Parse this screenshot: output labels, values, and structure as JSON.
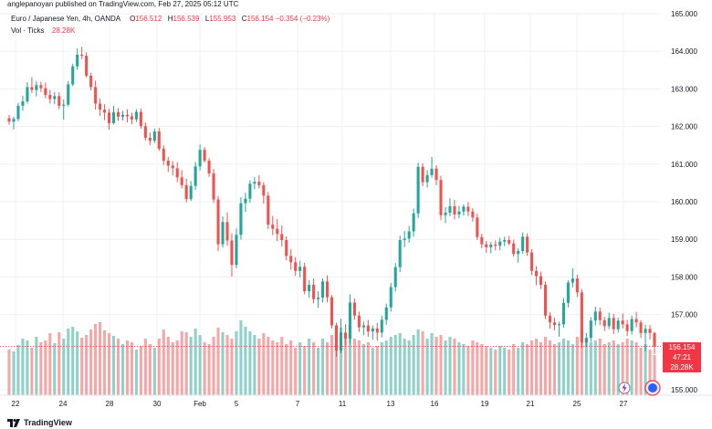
{
  "header": {
    "published": "anglepanoyan published on TradingView.com, Feb 27, 2025 05:12 UTC"
  },
  "legend": {
    "symbol": "Euro / Japanese Yen, 4h, OANDA",
    "o_key": "O",
    "o_val": "156.512",
    "h_key": "H",
    "h_val": "156.539",
    "l_key": "L",
    "l_val": "155.953",
    "c_key": "C",
    "c_val": "156.154",
    "change": "−0.354 (−0.23%)",
    "vol_label": "Vol · Ticks",
    "vol_val": "28.28K"
  },
  "price_label": {
    "price": "156.154",
    "countdown": "47:21",
    "volume": "28.28K"
  },
  "brand": {
    "name": "TradingView"
  },
  "colors": {
    "up": "#26a69a",
    "down": "#ef5350",
    "vol_up": "#8fd1c8",
    "vol_down": "#f5a6a6",
    "grid": "#eef0f3",
    "price_line": "#f23645"
  },
  "chart_data": {
    "type": "candlestick",
    "symbol": "EURJPY",
    "timeframe": "4h",
    "y_ticks": [
      "165.000",
      "164.000",
      "163.000",
      "162.000",
      "161.000",
      "160.000",
      "159.000",
      "158.000",
      "157.000",
      "156.000",
      "155.000"
    ],
    "ylim": [
      154.9,
      165.1
    ],
    "x_ticks": [
      "22",
      "24",
      "28",
      "30",
      "Feb",
      "5",
      "7",
      "11",
      "13",
      "16",
      "19",
      "21",
      "25",
      "27"
    ],
    "candles": [
      [
        162.22,
        162.31,
        162.05,
        162.13,
        0.5
      ],
      [
        162.13,
        162.26,
        161.92,
        162.2,
        0.48
      ],
      [
        162.2,
        162.63,
        162.14,
        162.55,
        0.55
      ],
      [
        162.55,
        162.82,
        162.42,
        162.67,
        0.62
      ],
      [
        162.67,
        163.18,
        162.61,
        163.05,
        0.6
      ],
      [
        163.05,
        163.31,
        162.89,
        162.97,
        0.52
      ],
      [
        162.97,
        163.21,
        162.8,
        163.1,
        0.64
      ],
      [
        163.1,
        163.19,
        162.92,
        163.02,
        0.58
      ],
      [
        163.02,
        163.17,
        162.75,
        162.84,
        0.6
      ],
      [
        162.84,
        162.97,
        162.61,
        162.73,
        0.68
      ],
      [
        162.73,
        162.92,
        162.59,
        162.81,
        0.57
      ],
      [
        162.81,
        162.91,
        162.46,
        162.55,
        0.69
      ],
      [
        162.55,
        162.72,
        162.18,
        162.58,
        0.62
      ],
      [
        162.58,
        163.21,
        162.53,
        163.12,
        0.73
      ],
      [
        163.12,
        163.67,
        163.07,
        163.6,
        0.75
      ],
      [
        163.6,
        164.08,
        163.51,
        163.91,
        0.7
      ],
      [
        163.91,
        164.12,
        163.79,
        163.88,
        0.63
      ],
      [
        163.88,
        163.97,
        163.3,
        163.35,
        0.66
      ],
      [
        163.35,
        163.43,
        162.96,
        163.05,
        0.72
      ],
      [
        163.05,
        163.22,
        162.45,
        162.61,
        0.78
      ],
      [
        162.61,
        162.74,
        162.28,
        162.45,
        0.8
      ],
      [
        162.45,
        162.59,
        162.17,
        162.37,
        0.71
      ],
      [
        162.37,
        162.47,
        161.92,
        162.09,
        0.68
      ],
      [
        162.09,
        162.55,
        162.05,
        162.38,
        0.65
      ],
      [
        162.38,
        162.49,
        162.15,
        162.26,
        0.62
      ],
      [
        162.26,
        162.42,
        162.16,
        162.31,
        0.56
      ],
      [
        162.31,
        162.46,
        162.11,
        162.27,
        0.6
      ],
      [
        162.27,
        162.37,
        162.06,
        162.19,
        0.58
      ],
      [
        162.19,
        162.46,
        162.12,
        162.39,
        0.5
      ],
      [
        162.39,
        162.48,
        161.94,
        162.01,
        0.54
      ],
      [
        162.01,
        162.11,
        161.62,
        161.7,
        0.62
      ],
      [
        161.7,
        161.84,
        161.5,
        161.62,
        0.56
      ],
      [
        161.62,
        161.95,
        161.56,
        161.87,
        0.52
      ],
      [
        161.87,
        161.96,
        161.35,
        161.41,
        0.62
      ],
      [
        161.41,
        161.5,
        160.98,
        161.09,
        0.72
      ],
      [
        161.09,
        161.19,
        160.79,
        160.96,
        0.64
      ],
      [
        160.96,
        161.08,
        160.7,
        160.89,
        0.58
      ],
      [
        160.89,
        161.05,
        160.52,
        160.65,
        0.6
      ],
      [
        160.65,
        160.84,
        160.35,
        160.44,
        0.7
      ],
      [
        160.44,
        160.61,
        159.98,
        160.07,
        0.69
      ],
      [
        160.07,
        160.55,
        160.02,
        160.42,
        0.64
      ],
      [
        160.42,
        161.06,
        160.31,
        160.94,
        0.73
      ],
      [
        160.94,
        161.52,
        160.83,
        161.38,
        0.66
      ],
      [
        161.38,
        161.45,
        161.04,
        161.09,
        0.58
      ],
      [
        161.09,
        161.16,
        160.66,
        160.75,
        0.56
      ],
      [
        160.75,
        160.87,
        159.97,
        160.06,
        0.64
      ],
      [
        160.06,
        160.15,
        158.69,
        158.87,
        0.74
      ],
      [
        158.87,
        159.61,
        158.78,
        159.46,
        0.69
      ],
      [
        159.46,
        159.72,
        158.83,
        158.97,
        0.66
      ],
      [
        158.97,
        159.16,
        158.01,
        158.32,
        0.62
      ],
      [
        158.32,
        159.29,
        158.23,
        159.12,
        0.7
      ],
      [
        159.12,
        160.12,
        158.99,
        159.96,
        0.82
      ],
      [
        159.96,
        160.24,
        159.73,
        160.08,
        0.75
      ],
      [
        160.08,
        160.57,
        159.97,
        160.48,
        0.7
      ],
      [
        160.48,
        160.66,
        160.33,
        160.53,
        0.66
      ],
      [
        160.53,
        160.71,
        160.35,
        160.44,
        0.62
      ],
      [
        160.44,
        160.52,
        159.95,
        160.16,
        0.68
      ],
      [
        160.16,
        160.26,
        159.27,
        159.39,
        0.64
      ],
      [
        159.39,
        159.62,
        159.11,
        159.28,
        0.6
      ],
      [
        159.28,
        159.54,
        158.95,
        159.14,
        0.58
      ],
      [
        159.14,
        159.37,
        158.81,
        158.98,
        0.64
      ],
      [
        158.98,
        159.08,
        158.44,
        158.56,
        0.56
      ],
      [
        158.56,
        158.74,
        158.19,
        158.39,
        0.6
      ],
      [
        158.39,
        158.52,
        158.03,
        158.16,
        0.52
      ],
      [
        158.16,
        158.43,
        157.98,
        158.27,
        0.58
      ],
      [
        158.27,
        158.38,
        157.54,
        157.62,
        0.54
      ],
      [
        157.62,
        157.91,
        157.45,
        157.79,
        0.62
      ],
      [
        157.79,
        157.96,
        157.3,
        157.41,
        0.58
      ],
      [
        157.41,
        157.62,
        157.18,
        157.45,
        0.52
      ],
      [
        157.45,
        157.96,
        157.32,
        157.88,
        0.62
      ],
      [
        157.88,
        158.04,
        157.32,
        157.46,
        0.58
      ],
      [
        157.46,
        157.52,
        156.63,
        156.71,
        0.66
      ],
      [
        156.71,
        156.78,
        155.88,
        156.04,
        0.7
      ],
      [
        156.04,
        156.89,
        155.97,
        156.52,
        0.74
      ],
      [
        156.52,
        156.74,
        156.18,
        156.36,
        0.68
      ],
      [
        156.36,
        157.54,
        156.23,
        157.32,
        0.78
      ],
      [
        157.32,
        157.43,
        156.86,
        156.97,
        0.62
      ],
      [
        156.97,
        157.08,
        156.54,
        156.66,
        0.6
      ],
      [
        156.66,
        156.81,
        156.45,
        156.71,
        0.56
      ],
      [
        156.71,
        156.86,
        156.41,
        156.55,
        0.58
      ],
      [
        156.55,
        156.71,
        156.33,
        156.63,
        0.52
      ],
      [
        156.63,
        156.78,
        156.3,
        156.52,
        0.54
      ],
      [
        156.52,
        156.97,
        156.39,
        156.86,
        0.58
      ],
      [
        156.86,
        157.29,
        156.73,
        157.19,
        0.6
      ],
      [
        157.19,
        157.84,
        157.08,
        157.73,
        0.64
      ],
      [
        157.73,
        158.37,
        157.61,
        158.26,
        0.66
      ],
      [
        158.26,
        159.1,
        158.13,
        158.98,
        0.68
      ],
      [
        158.98,
        159.22,
        158.79,
        159.02,
        0.62
      ],
      [
        159.02,
        159.36,
        158.91,
        159.21,
        0.6
      ],
      [
        159.21,
        159.82,
        159.07,
        159.69,
        0.66
      ],
      [
        159.69,
        161.04,
        159.56,
        160.93,
        0.72
      ],
      [
        160.93,
        161.02,
        160.41,
        160.52,
        0.7
      ],
      [
        160.52,
        160.84,
        160.38,
        160.71,
        0.62
      ],
      [
        160.71,
        161.19,
        160.64,
        160.88,
        0.68
      ],
      [
        160.88,
        160.97,
        160.44,
        160.58,
        0.64
      ],
      [
        160.58,
        160.69,
        159.51,
        159.64,
        0.66
      ],
      [
        159.64,
        159.86,
        159.43,
        159.71,
        0.6
      ],
      [
        159.71,
        160.09,
        159.61,
        159.88,
        0.64
      ],
      [
        159.88,
        160.05,
        159.53,
        159.66,
        0.62
      ],
      [
        159.66,
        159.89,
        159.56,
        159.74,
        0.58
      ],
      [
        159.74,
        159.93,
        159.63,
        159.87,
        0.56
      ],
      [
        159.87,
        159.99,
        159.62,
        159.74,
        0.54
      ],
      [
        159.74,
        159.83,
        159.47,
        159.58,
        0.6
      ],
      [
        159.58,
        159.68,
        158.98,
        159.06,
        0.58
      ],
      [
        159.06,
        159.15,
        158.76,
        158.87,
        0.56
      ],
      [
        158.87,
        158.96,
        158.64,
        158.79,
        0.54
      ],
      [
        158.79,
        158.93,
        158.63,
        158.86,
        0.52
      ],
      [
        158.86,
        158.97,
        158.71,
        158.83,
        0.5
      ],
      [
        158.83,
        159.04,
        158.71,
        158.94,
        0.54
      ],
      [
        158.94,
        159.07,
        158.82,
        158.98,
        0.52
      ],
      [
        158.98,
        159.09,
        158.84,
        158.89,
        0.5
      ],
      [
        158.89,
        158.99,
        158.54,
        158.61,
        0.56
      ],
      [
        158.61,
        158.76,
        158.38,
        158.69,
        0.52
      ],
      [
        158.69,
        159.18,
        158.62,
        159.07,
        0.58
      ],
      [
        159.07,
        159.16,
        158.56,
        158.65,
        0.56
      ],
      [
        158.65,
        158.74,
        158.05,
        158.16,
        0.6
      ],
      [
        158.16,
        158.29,
        157.78,
        158.02,
        0.62
      ],
      [
        158.02,
        158.14,
        157.68,
        157.79,
        0.58
      ],
      [
        157.79,
        157.88,
        156.88,
        156.97,
        0.64
      ],
      [
        156.97,
        157.06,
        156.63,
        156.79,
        0.6
      ],
      [
        156.79,
        156.92,
        156.58,
        156.72,
        0.56
      ],
      [
        156.72,
        156.81,
        156.41,
        156.74,
        0.58
      ],
      [
        156.74,
        157.44,
        156.65,
        157.31,
        0.62
      ],
      [
        157.31,
        157.91,
        157.19,
        157.85,
        0.6
      ],
      [
        157.85,
        158.23,
        157.72,
        157.96,
        0.56
      ],
      [
        157.96,
        158.06,
        157.47,
        157.59,
        0.64
      ],
      [
        157.59,
        157.68,
        156.12,
        156.26,
        0.7
      ],
      [
        156.26,
        156.51,
        156.14,
        156.38,
        0.62
      ],
      [
        156.38,
        156.93,
        156.27,
        156.84,
        0.58
      ],
      [
        156.84,
        157.21,
        156.71,
        157.08,
        0.6
      ],
      [
        157.08,
        157.19,
        156.72,
        156.85,
        0.62
      ],
      [
        156.85,
        156.94,
        156.56,
        156.69,
        0.56
      ],
      [
        156.69,
        157.05,
        156.61,
        156.91,
        0.58
      ],
      [
        156.91,
        157.02,
        156.48,
        156.61,
        0.6
      ],
      [
        156.61,
        156.92,
        156.52,
        156.84,
        0.56
      ],
      [
        156.84,
        157.03,
        156.63,
        156.74,
        0.58
      ],
      [
        156.74,
        156.86,
        156.43,
        156.56,
        0.62
      ],
      [
        156.56,
        156.97,
        156.47,
        156.88,
        0.6
      ],
      [
        156.88,
        157.07,
        156.66,
        156.79,
        0.58
      ],
      [
        156.79,
        156.85,
        156.38,
        156.51,
        0.52
      ],
      [
        156.51,
        156.73,
        156.02,
        156.62,
        0.56
      ],
      [
        156.62,
        156.72,
        156.34,
        156.51,
        0.5
      ],
      [
        156.51,
        156.54,
        155.95,
        156.15,
        0.44
      ]
    ]
  }
}
